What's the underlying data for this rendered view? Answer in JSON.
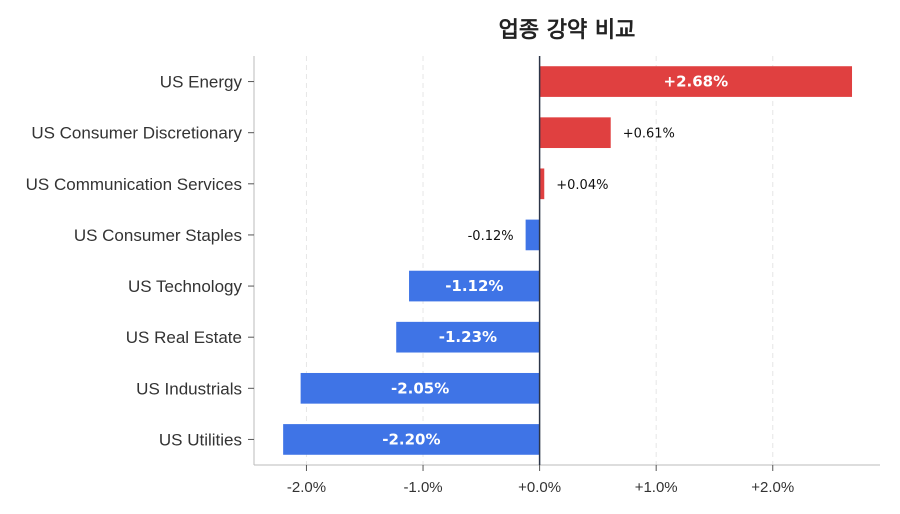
{
  "chart_data": {
    "type": "bar",
    "orientation": "horizontal",
    "title": "업종 강약 비교",
    "categories": [
      "US Energy",
      "US Consumer Discretionary",
      "US Communication Services",
      "US Consumer Staples",
      "US Technology",
      "US Real Estate",
      "US Industrials",
      "US Utilities"
    ],
    "values": [
      2.68,
      0.61,
      0.04,
      -0.12,
      -1.12,
      -1.23,
      -2.05,
      -2.2
    ],
    "value_labels": [
      "+2.68%",
      "+0.61%",
      "+0.04%",
      "-0.12%",
      "-1.12%",
      "-1.23%",
      "-2.05%",
      "-2.20%"
    ],
    "xlim": [
      -2.45,
      2.92
    ],
    "xticks": [
      -2,
      -1,
      0,
      1,
      2
    ],
    "xtick_labels": [
      "-2.0%",
      "-1.0%",
      "+0.0%",
      "+1.0%",
      "+2.0%"
    ],
    "xlabel": "",
    "ylabel": "",
    "grid": "vertical dashed",
    "colors": {
      "positive": "#e04040",
      "negative": "#3f74e6",
      "zero_line": "#2c3548",
      "grid": "#e6e6e6",
      "axis": "#bbbbbb"
    }
  }
}
